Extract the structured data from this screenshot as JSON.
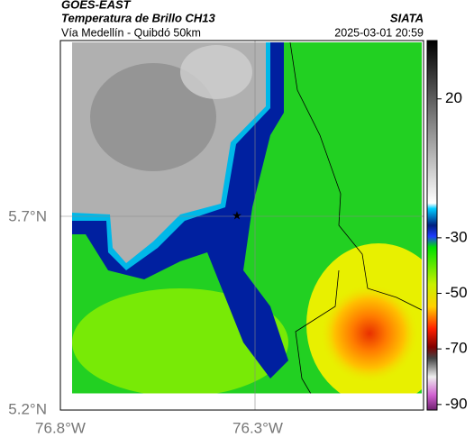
{
  "header": {
    "source": "GOES-EAST",
    "title": "Temperatura de Brillo CH13",
    "brand": "SIATA",
    "route": "Vía Medellín - Quibdó 50km",
    "datetime": "2025-03-01 20:59"
  },
  "axes": {
    "lat_labels": [
      "5.7°N",
      "5.2°N"
    ],
    "lon_labels": [
      "76.8°W",
      "76.3°W"
    ]
  },
  "colorbar": {
    "lim": [
      -92,
      41
    ],
    "ticks": [
      20,
      -30,
      -50,
      -70,
      -90
    ]
  }
}
